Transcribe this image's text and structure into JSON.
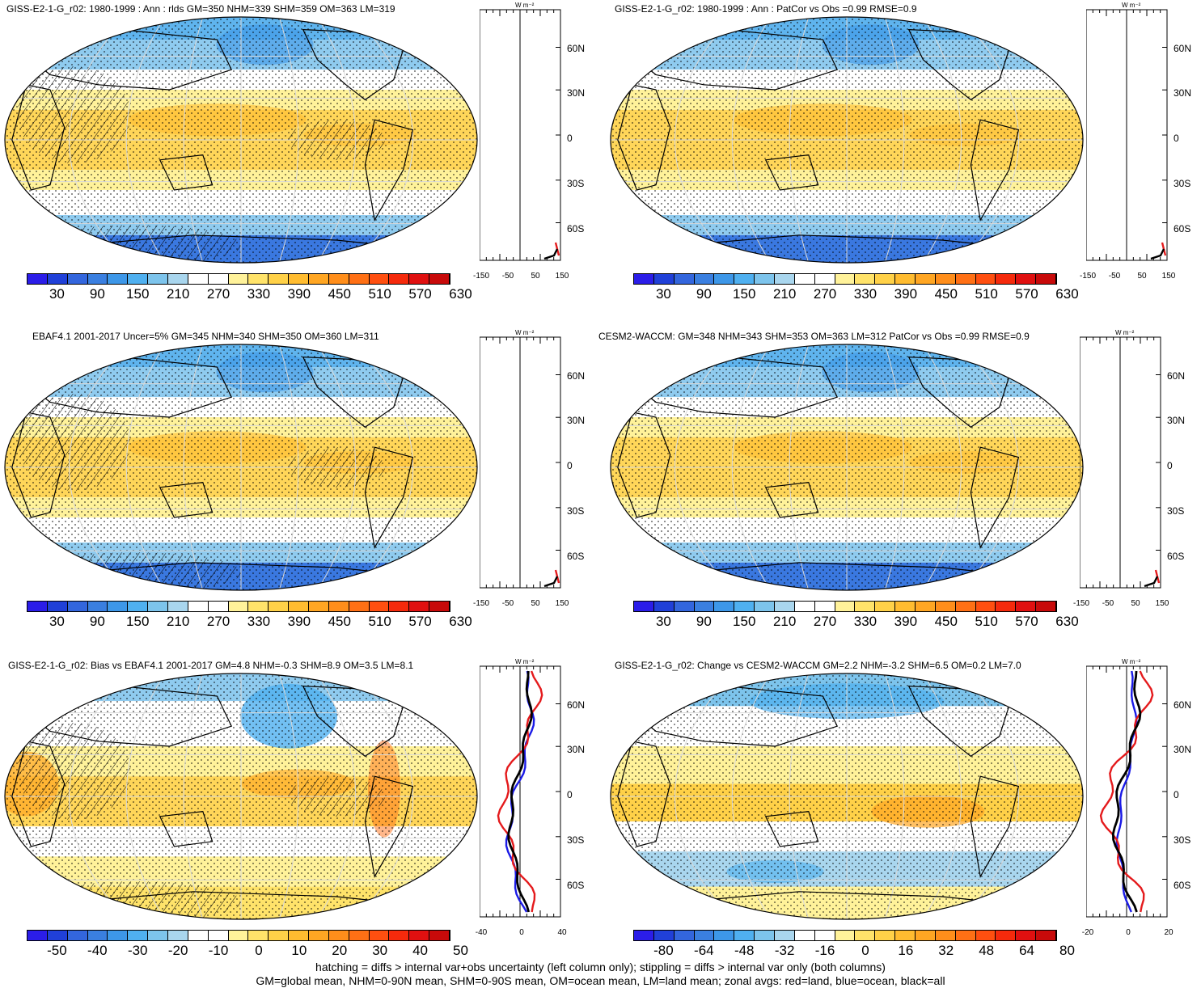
{
  "panels": [
    {
      "title": "GISS-E2-1-G_r02: 1980-1999 : Ann : rlds GM=350 NHM=339 SHM=359 OM=363 LM=319",
      "colorbar_labels": [
        "30",
        "90",
        "150",
        "210",
        "270",
        "330",
        "390",
        "450",
        "510",
        "570",
        "630"
      ],
      "zonal_xticks": [
        "-150",
        "-50",
        "50",
        "150"
      ],
      "zonal_unit": "W m⁻²",
      "lat_ticks": [
        "60N",
        "30N",
        "0",
        "30S",
        "60S"
      ],
      "kind": "abs"
    },
    {
      "title": "GISS-E2-1-G_r02: 1980-1999 : Ann : PatCor vs Obs =0.99 RMSE=0.9",
      "colorbar_labels": [
        "30",
        "90",
        "150",
        "210",
        "270",
        "330",
        "390",
        "450",
        "510",
        "570",
        "630"
      ],
      "zonal_xticks": [
        "-150",
        "-50",
        "50",
        "150"
      ],
      "zonal_unit": "W m⁻²",
      "lat_ticks": [
        "60N",
        "30N",
        "0",
        "30S",
        "60S"
      ],
      "kind": "abs"
    },
    {
      "title": "EBAF4.1 2001-2017 Uncer=5% GM=345 NHM=340 SHM=350 OM=360 LM=311",
      "colorbar_labels": [
        "30",
        "90",
        "150",
        "210",
        "270",
        "330",
        "390",
        "450",
        "510",
        "570",
        "630"
      ],
      "zonal_xticks": [
        "-150",
        "-50",
        "50",
        "150"
      ],
      "zonal_unit": "W m⁻²",
      "lat_ticks": [
        "60N",
        "30N",
        "0",
        "30S",
        "60S"
      ],
      "kind": "abs"
    },
    {
      "title": "CESM2-WACCM: GM=348 NHM=343 SHM=353 OM=363 LM=312 PatCor vs Obs =0.99 RMSE=0.9",
      "colorbar_labels": [
        "30",
        "90",
        "150",
        "210",
        "270",
        "330",
        "390",
        "450",
        "510",
        "570",
        "630"
      ],
      "zonal_xticks": [
        "-150",
        "-50",
        "50",
        "150"
      ],
      "zonal_unit": "W m⁻²",
      "lat_ticks": [
        "60N",
        "30N",
        "0",
        "30S",
        "60S"
      ],
      "kind": "abs"
    },
    {
      "title": "GISS-E2-1-G_r02: Bias vs EBAF4.1 2001-2017 GM=4.8 NHM=-0.3 SHM=8.9 OM=3.5 LM=8.1",
      "colorbar_labels": [
        "-50",
        "-40",
        "-30",
        "-20",
        "-10",
        "0",
        "10",
        "20",
        "30",
        "40",
        "50"
      ],
      "zonal_xticks": [
        "-40",
        "0",
        "40"
      ],
      "zonal_unit": "W m⁻²",
      "lat_ticks": [
        "60N",
        "30N",
        "0",
        "30S",
        "60S"
      ],
      "kind": "bias"
    },
    {
      "title": "GISS-E2-1-G_r02: Change vs CESM2-WACCM GM=2.2 NHM=-3.2 SHM=6.5 OM=0.2 LM=7.0",
      "colorbar_labels": [
        "-80",
        "-64",
        "-48",
        "-32",
        "-16",
        "0",
        "16",
        "32",
        "48",
        "64",
        "80"
      ],
      "zonal_xticks": [
        "-20",
        "0",
        "20"
      ],
      "zonal_unit": "W m⁻²",
      "lat_ticks": [
        "60N",
        "30N",
        "0",
        "30S",
        "60S"
      ],
      "kind": "change"
    }
  ],
  "footer": {
    "line1": "hatching = diffs > internal var+obs uncertainty (left column only); stippling = diffs > internal var only (both columns)",
    "line2": "GM=global mean, NHM=0-90N mean, SHM=0-90S mean, OM=ocean mean, LM=land mean; zonal avgs: red=land, blue=ocean, black=all"
  },
  "colors": {
    "palette": [
      "#2b1de8",
      "#2040d8",
      "#3366dd",
      "#3a7fe0",
      "#3d97e8",
      "#4fb0f0",
      "#7dc4ec",
      "#a9d6ee",
      "#ffffff",
      "#ffffff",
      "#fff29a",
      "#ffe36a",
      "#ffd148",
      "#ffbc30",
      "#ffa623",
      "#ff8e1b",
      "#ff7015",
      "#ff4f10",
      "#f52a0c",
      "#e01010",
      "#c80a0a"
    ],
    "land_line": "#e41a1c",
    "ocean_line": "#1a1ae6",
    "all_line": "#000000"
  }
}
